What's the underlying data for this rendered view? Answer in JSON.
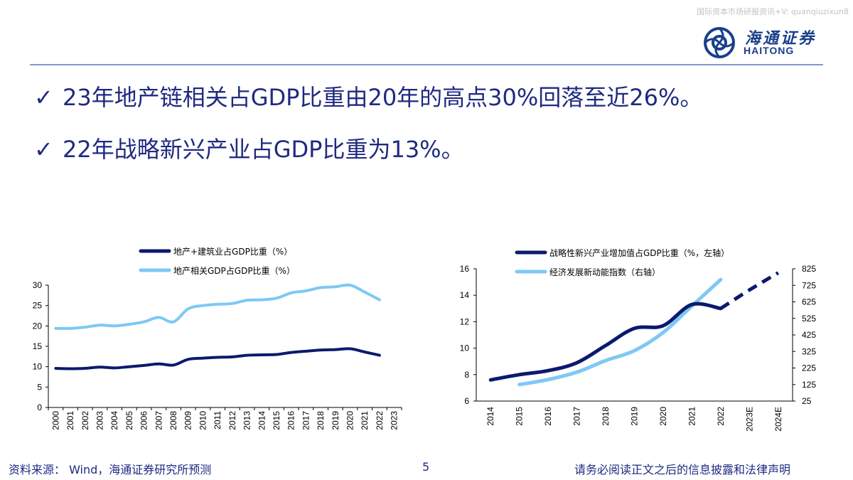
{
  "watermark": "国际资本市场研报资讯+V: quanqiuzixun8",
  "logo": {
    "cn": "海通证券",
    "en": "HAITONG"
  },
  "bullets": [
    {
      "check": "✓",
      "text": "23年地产链相关占GDP比重由20年的高点30%回落至近26%。"
    },
    {
      "check": "✓",
      "text": "22年战略新兴产业占GDP比重为13%。"
    }
  ],
  "footer": {
    "source": "资料来源：  Wind，海通证券研究所预测",
    "page": "5",
    "disclaimer": "请务必阅读正文之后的信息披露和法律声明"
  },
  "chart_data": [
    {
      "type": "line",
      "x": [
        "2000",
        "2001",
        "2002",
        "2003",
        "2004",
        "2005",
        "2006",
        "2007",
        "2008",
        "2009",
        "2010",
        "2011",
        "2012",
        "2013",
        "2014",
        "2015",
        "2016",
        "2017",
        "2018",
        "2019",
        "2020",
        "2021",
        "2022",
        "2023"
      ],
      "ylim": [
        0,
        30
      ],
      "yticks": [
        "0",
        "5",
        "10",
        "15",
        "20",
        "25",
        "30"
      ],
      "series": [
        {
          "name": "地产+建筑业占GDP比重（%）",
          "color": "#0b1a6e",
          "values": [
            9.6,
            9.5,
            9.6,
            9.9,
            9.7,
            10.0,
            10.3,
            10.7,
            10.4,
            11.8,
            12.1,
            12.3,
            12.4,
            12.8,
            12.9,
            13.0,
            13.5,
            13.8,
            14.1,
            14.2,
            14.4,
            13.6,
            12.8,
            null
          ]
        },
        {
          "name": "地产相关GDP占GDP比重（%）",
          "color": "#7ec8f5",
          "values": [
            19.4,
            19.4,
            19.7,
            20.2,
            20.0,
            20.4,
            21.0,
            22.1,
            21.0,
            24.2,
            25.0,
            25.3,
            25.5,
            26.3,
            26.4,
            26.8,
            28.1,
            28.6,
            29.4,
            29.6,
            30.0,
            28.3,
            26.4,
            null
          ]
        }
      ]
    },
    {
      "type": "line",
      "x": [
        "2014",
        "2015",
        "2016",
        "2017",
        "2018",
        "2019",
        "2020",
        "2021",
        "2022",
        "2023E",
        "2024E"
      ],
      "ylim_left": [
        6,
        16
      ],
      "yticks_left": [
        "6",
        "8",
        "10",
        "12",
        "14",
        "16"
      ],
      "ylim_right": [
        25,
        825
      ],
      "yticks_right": [
        "25",
        "125",
        "225",
        "325",
        "425",
        "525",
        "625",
        "725",
        "825"
      ],
      "series": [
        {
          "name": "战略性新兴产业增加值占GDP比重（%，左轴）",
          "axis": "left",
          "color": "#0b1a6e",
          "values": [
            7.6,
            8.0,
            8.3,
            8.9,
            10.2,
            11.5,
            11.7,
            13.3,
            13.0,
            14.4,
            15.7
          ],
          "dashed_from": "2022"
        },
        {
          "name": "经济发展新动能指数（右轴）",
          "axis": "right",
          "color": "#7ec8f5",
          "values": [
            null,
            125,
            155,
            200,
            270,
            330,
            440,
            600,
            760,
            null,
            null
          ]
        }
      ]
    }
  ]
}
